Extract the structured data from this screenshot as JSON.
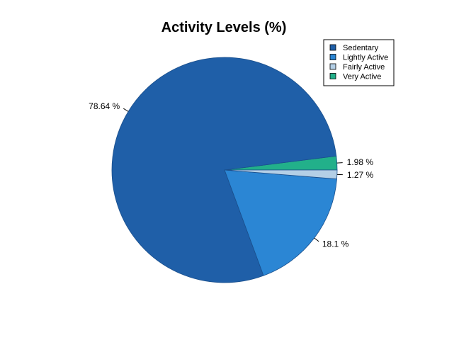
{
  "chart_data": {
    "type": "pie",
    "title": "Activity Levels (%)",
    "categories": [
      "Sedentary",
      "Lightly Active",
      "Fairly Active",
      "Very Active"
    ],
    "values": [
      78.64,
      18.1,
      1.27,
      1.98
    ],
    "labels": [
      "78.64 %",
      "18.1 %",
      "1.27 %",
      "1.98 %"
    ],
    "colors": [
      "#1f5fa8",
      "#2b86d4",
      "#b3cfe6",
      "#22b08a"
    ],
    "legend": "top-right",
    "start_direction": "counterclockwise from 3 o'clock"
  }
}
